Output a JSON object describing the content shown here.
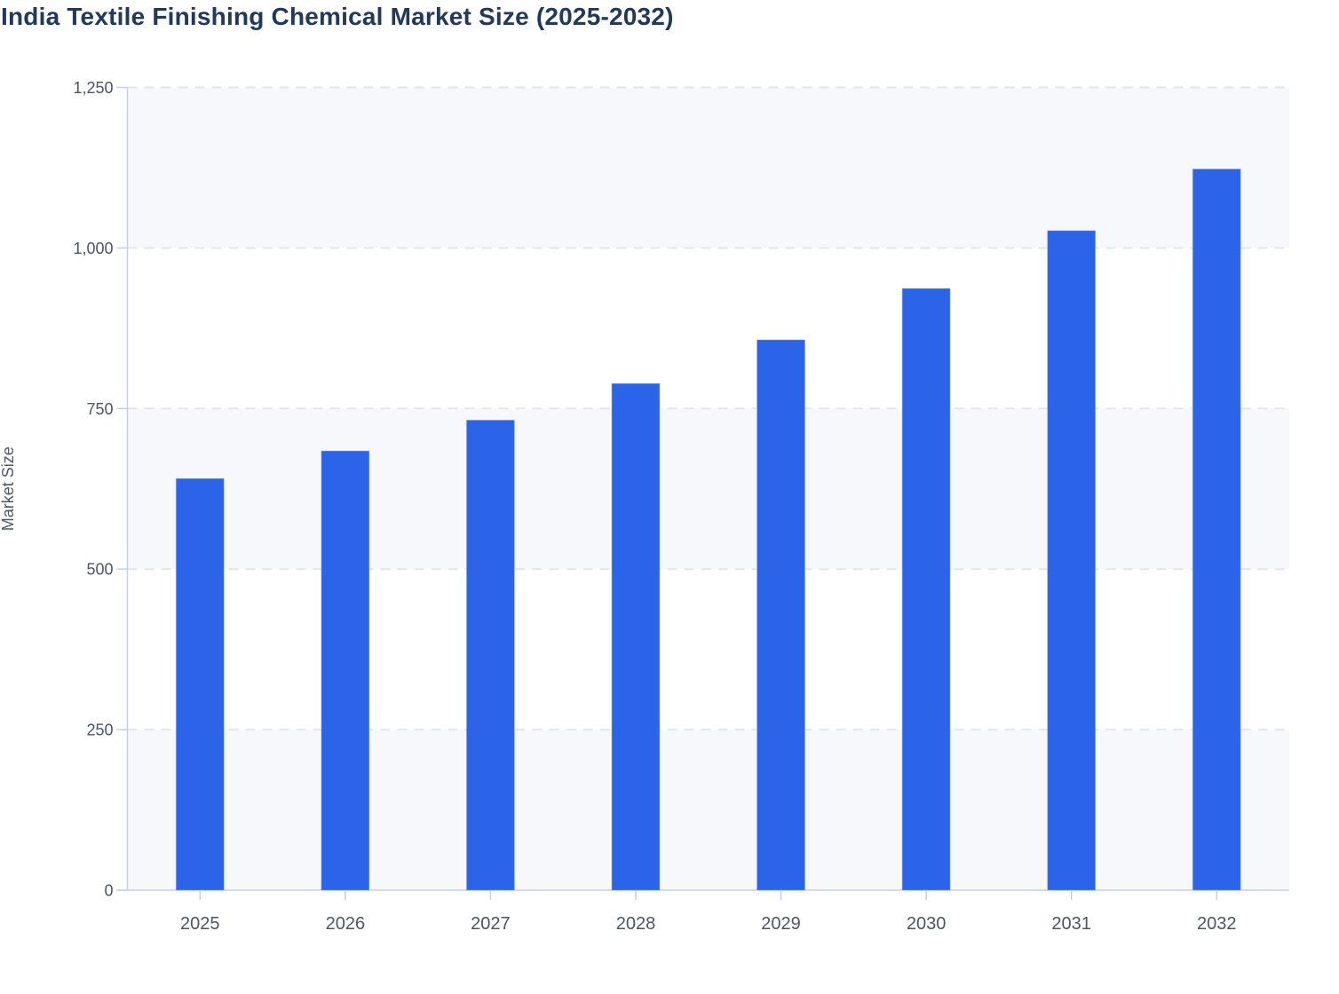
{
  "page": {
    "title": "India Textile Finishing Chemical Market Size (2025-2032)"
  },
  "chart_data": {
    "type": "bar",
    "title": "India Textile Finishing Chemical Market Size (2025-2032)",
    "categories": [
      "2025",
      "2026",
      "2027",
      "2028",
      "2029",
      "2030",
      "2031",
      "2032"
    ],
    "values": [
      641,
      684,
      732,
      789,
      857,
      937,
      1027,
      1123
    ],
    "xlabel": "",
    "ylabel": "Market Size",
    "ylim": [
      0,
      1250
    ],
    "yticks": [
      0,
      250,
      500,
      750,
      1000,
      1250
    ],
    "ytick_labels": [
      "0",
      "250",
      "500",
      "750",
      "1,000",
      "1,250"
    ],
    "grid": "horizontal-dashed",
    "legend": "none",
    "band_fill_pattern": "alternating horizontal bands starting gray at 0-250",
    "colors": {
      "bar": "#2b63e9",
      "band_gray": "#f7f8fb",
      "band_white": "#ffffff",
      "gridline": "#e3e5ea",
      "axis": "#c5cfe9",
      "tick_label": "#4b5566",
      "axis_title": "#4d5766",
      "chart_title": "#21395c"
    }
  }
}
